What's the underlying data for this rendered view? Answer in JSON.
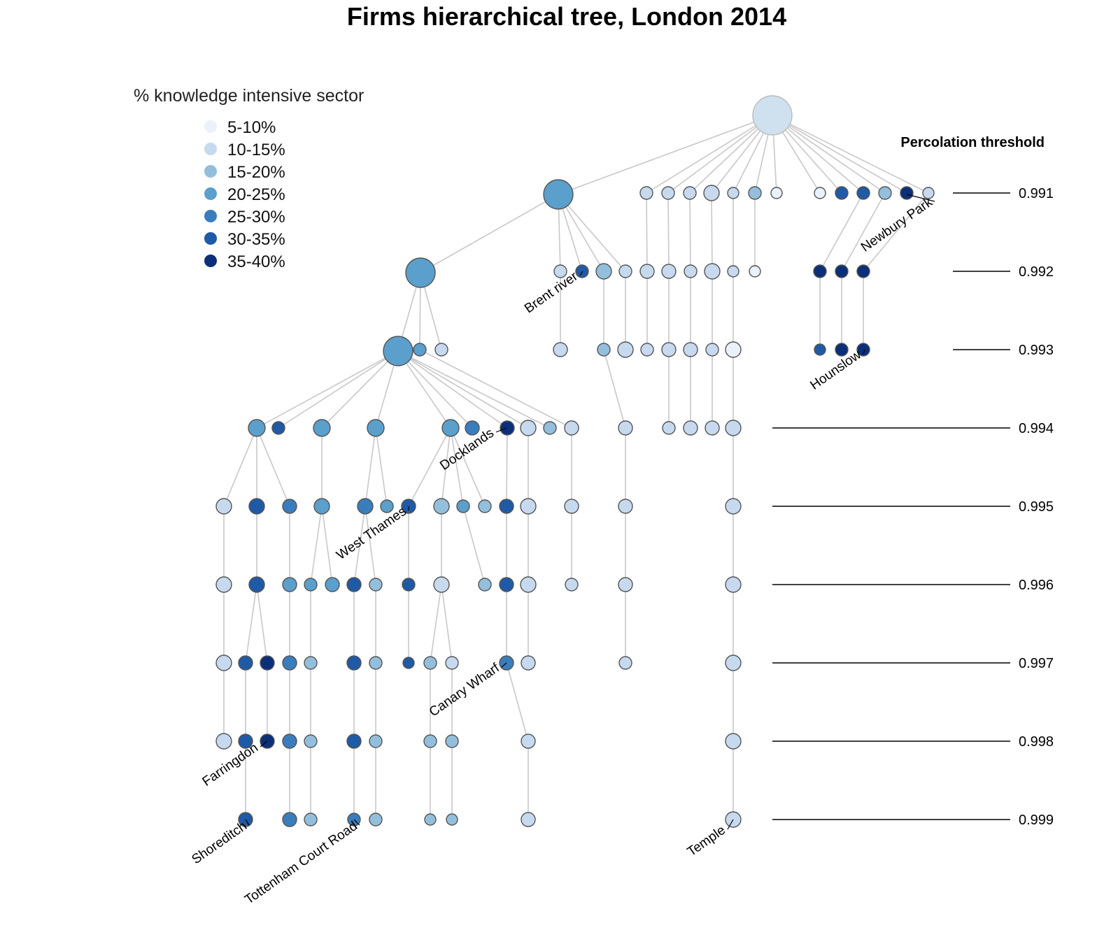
{
  "title": "Firms hierarchical tree, London 2014",
  "legend": {
    "title": "% knowledge intensive sector",
    "items": [
      {
        "label": "5-10%",
        "color": "#eaf1fb"
      },
      {
        "label": "10-15%",
        "color": "#c6d9ef"
      },
      {
        "label": "15-20%",
        "color": "#93bfdc"
      },
      {
        "label": "20-25%",
        "color": "#5b9fcc"
      },
      {
        "label": "25-30%",
        "color": "#3a7dbd"
      },
      {
        "label": "30-35%",
        "color": "#1f5aa6"
      },
      {
        "label": "35-40%",
        "color": "#0b2f79"
      }
    ]
  },
  "thresholds": {
    "title": "Percolation threshold",
    "values": [
      "0.991",
      "0.992",
      "0.993",
      "0.994",
      "0.995",
      "0.996",
      "0.997",
      "0.998",
      "0.999"
    ]
  },
  "place_labels": [
    "Newbury Park",
    "Brent river",
    "Hounslow",
    "Docklands",
    "West Thames",
    "Canary Wharf",
    "Farringdon",
    "Shoreditch",
    "Tottenham Court Road",
    "Temple"
  ],
  "tree": {
    "root_color": "#cfe1ee",
    "levels": [
      {
        "threshold": "0.991",
        "nodes": [
          3,
          1,
          1,
          1,
          1,
          1,
          2,
          0,
          0,
          5,
          5,
          2,
          6,
          1
        ]
      },
      {
        "threshold": "0.992",
        "nodes": [
          3,
          1,
          5,
          2,
          1,
          1,
          1,
          1,
          1,
          1,
          0,
          6,
          6,
          6
        ]
      },
      {
        "threshold": "0.993",
        "nodes": [
          3,
          3,
          1,
          1,
          2,
          1,
          1,
          1,
          1,
          1,
          0,
          5,
          6,
          6
        ]
      },
      {
        "threshold": "0.994",
        "nodes": [
          3,
          5,
          3,
          3,
          3,
          4,
          6,
          1,
          2,
          1,
          1,
          1,
          1,
          1,
          1
        ]
      },
      {
        "threshold": "0.995",
        "nodes": [
          1,
          5,
          4,
          3,
          4,
          3,
          5,
          2,
          3,
          2,
          5,
          1,
          1,
          1,
          1
        ]
      },
      {
        "threshold": "0.996",
        "nodes": [
          1,
          5,
          3,
          3,
          3,
          5,
          2,
          5,
          1,
          2,
          5,
          1,
          1,
          1,
          1
        ]
      },
      {
        "threshold": "0.997",
        "nodes": [
          1,
          5,
          6,
          4,
          2,
          5,
          2,
          5,
          2,
          1,
          4,
          1,
          1,
          1
        ]
      },
      {
        "threshold": "0.998",
        "nodes": [
          1,
          5,
          6,
          4,
          2,
          5,
          2,
          2,
          2,
          1,
          1
        ]
      },
      {
        "threshold": "0.999",
        "nodes": [
          5,
          4,
          2,
          4,
          2,
          2,
          2,
          1,
          1
        ]
      }
    ]
  }
}
